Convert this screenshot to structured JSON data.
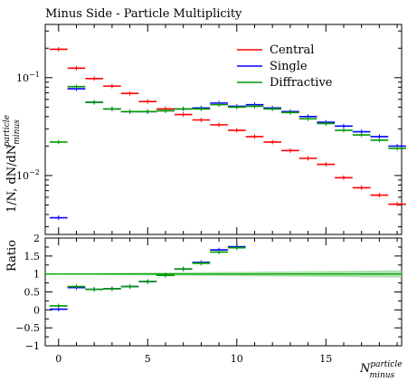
{
  "title": "Minus Side - Particle Multiplicity",
  "ylabel_main": "1/N, dN/dN",
  "ylabel_main_sup": "particle",
  "ylabel_main_sub": "minus",
  "ylabel_ratio": "Ratio",
  "xlabel_main": "N",
  "xlabel_sup": "particle",
  "xlabel_sub": "minus",
  "legend": [
    {
      "name": "Central",
      "color": "#ff0000"
    },
    {
      "name": "Single",
      "color": "#0000ff"
    },
    {
      "name": "Diffractive",
      "color": "#009900"
    }
  ],
  "chart_data": [
    {
      "type": "line",
      "panel": "main",
      "ylog": true,
      "ylim": [
        0.0025,
        0.35
      ],
      "xlim": [
        -0.75,
        19.25
      ],
      "x": [
        0,
        1,
        2,
        3,
        4,
        5,
        6,
        7,
        8,
        9,
        10,
        11,
        12,
        13,
        14,
        15,
        16,
        17,
        18,
        19
      ],
      "series": [
        {
          "name": "Central",
          "color": "#ff0000",
          "values": [
            0.195,
            0.125,
            0.098,
            0.082,
            0.069,
            0.057,
            0.048,
            0.042,
            0.037,
            0.033,
            0.029,
            0.025,
            0.022,
            0.018,
            0.015,
            0.013,
            0.0095,
            0.0075,
            0.0063,
            0.0051
          ]
        },
        {
          "name": "Single",
          "color": "#0000ff",
          "values": [
            0.0037,
            0.077,
            0.056,
            0.048,
            0.045,
            0.045,
            0.046,
            0.048,
            0.049,
            0.055,
            0.051,
            0.053,
            0.049,
            0.045,
            0.04,
            0.035,
            0.032,
            0.028,
            0.025,
            0.02
          ]
        },
        {
          "name": "Diffractive",
          "color": "#009900",
          "values": [
            0.022,
            0.081,
            0.056,
            0.048,
            0.045,
            0.045,
            0.046,
            0.048,
            0.048,
            0.053,
            0.05,
            0.051,
            0.048,
            0.044,
            0.038,
            0.034,
            0.029,
            0.026,
            0.023,
            0.019
          ]
        }
      ],
      "yticks": [
        {
          "value": 0.01,
          "label": "10",
          "exp": "−2"
        },
        {
          "value": 0.1,
          "label": "10",
          "exp": "−1"
        }
      ]
    },
    {
      "type": "line",
      "panel": "ratio",
      "ylim": [
        -1,
        2
      ],
      "xlim": [
        -0.75,
        19.25
      ],
      "ylabel": "Ratio",
      "x": [
        0,
        1,
        2,
        3,
        4,
        5,
        6,
        7,
        8,
        9,
        10
      ],
      "series": [
        {
          "name": "Single",
          "color": "#0000ff",
          "values": [
            0.02,
            0.62,
            0.57,
            0.59,
            0.65,
            0.79,
            0.96,
            1.14,
            1.32,
            1.67,
            1.76
          ]
        },
        {
          "name": "Diffractive",
          "color": "#009900",
          "values": [
            0.11,
            0.65,
            0.57,
            0.59,
            0.65,
            0.79,
            0.96,
            1.14,
            1.3,
            1.61,
            1.73
          ]
        }
      ],
      "reference": {
        "value": 1,
        "color": "#00aa00"
      },
      "yticks": [
        -1,
        -0.5,
        0,
        0.5,
        1,
        1.5,
        2
      ],
      "ytick_labels": [
        "−1",
        "−0.5",
        "0",
        "0.5",
        "1",
        "1.5",
        "2"
      ],
      "xticks": [
        0,
        5,
        10,
        15
      ],
      "xtick_labels": [
        "0",
        "5",
        "10",
        "15"
      ]
    }
  ]
}
